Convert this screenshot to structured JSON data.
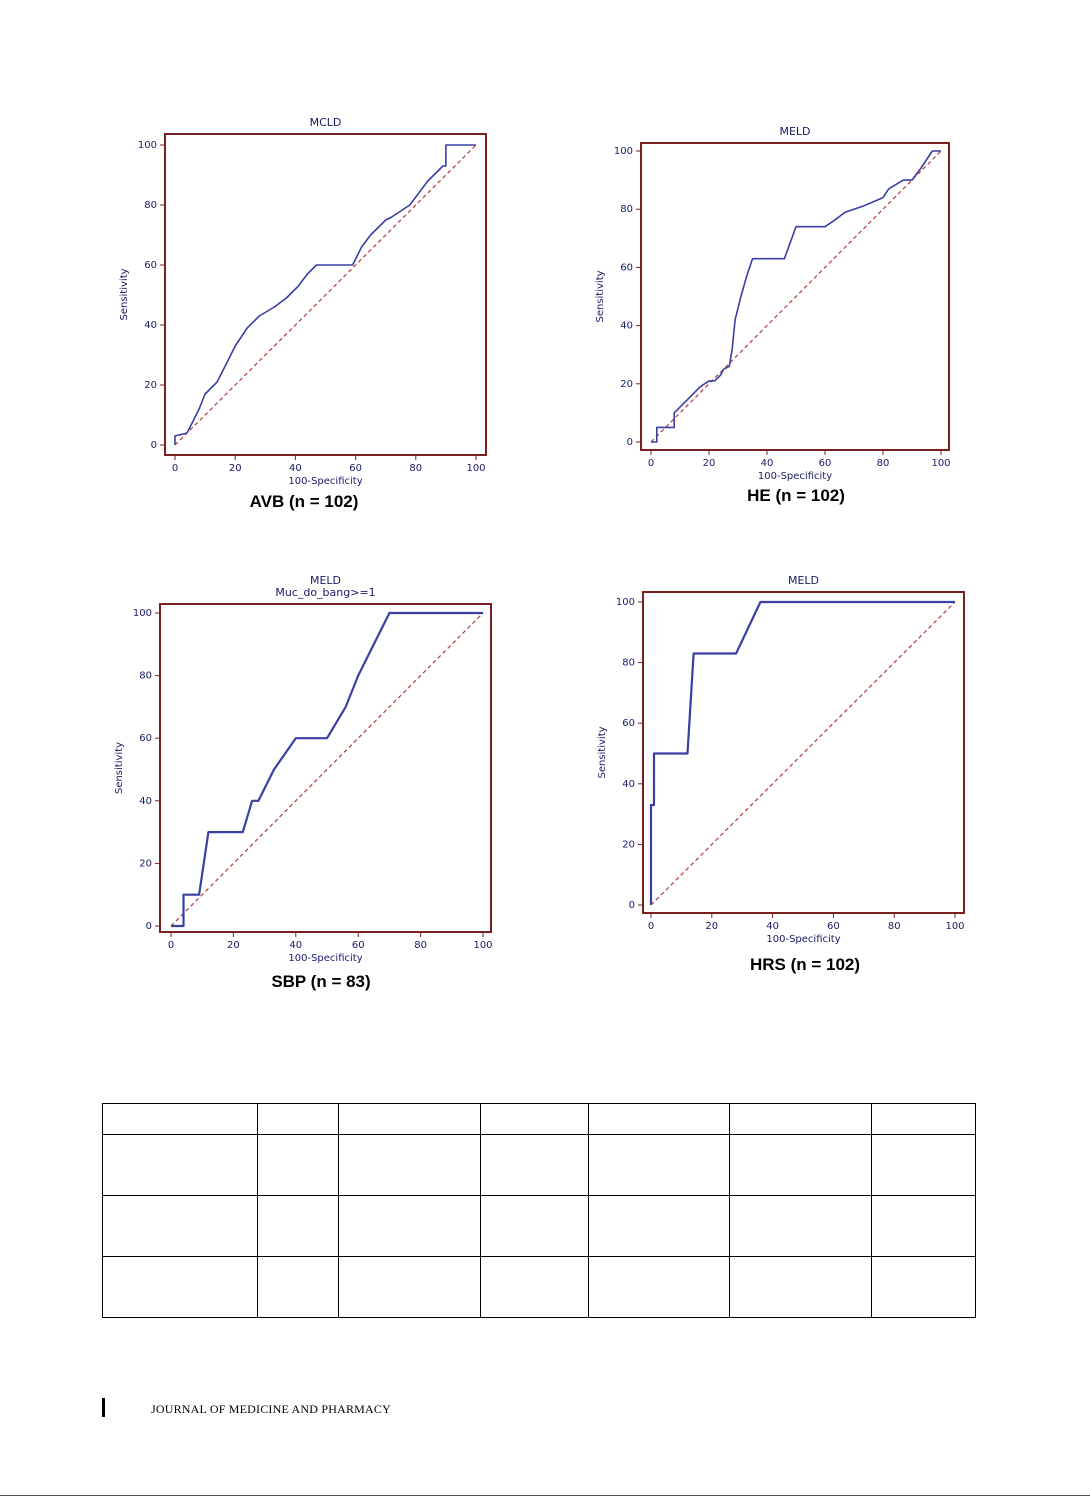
{
  "chart_data": [
    {
      "type": "line",
      "title": "MCLD",
      "subtitle": "",
      "xlabel": "100-Specificity",
      "ylabel": "Sensitivity",
      "xlim": [
        0,
        100
      ],
      "ylim": [
        0,
        100
      ],
      "xticks": [
        "0",
        "20",
        "40",
        "60",
        "80",
        "100"
      ],
      "yticks": [
        "0",
        "20",
        "40",
        "60",
        "80",
        "100"
      ],
      "caption": "AVB (n = 102)",
      "series": [
        {
          "x": [
            0,
            0,
            4,
            6,
            8,
            10,
            12,
            14,
            17,
            20,
            24,
            28,
            33,
            37,
            41,
            44,
            47,
            50,
            53,
            56,
            59,
            60,
            62,
            65,
            68,
            70,
            72,
            75,
            78,
            81,
            84,
            87,
            89,
            90,
            90,
            93,
            100
          ],
          "y": [
            0,
            3,
            4,
            8,
            12,
            17,
            19,
            21,
            27,
            33,
            39,
            43,
            46,
            49,
            53,
            57,
            60,
            60,
            60,
            60,
            60,
            62,
            66,
            70,
            73,
            75,
            76,
            78,
            80,
            84,
            88,
            91,
            93,
            93,
            100,
            100,
            100
          ]
        }
      ],
      "reference_line": true,
      "line_color": "#3a3fa4",
      "reference_color": "#b23a3a",
      "frame_color": "#7a1f1f",
      "legend": "none"
    },
    {
      "type": "line",
      "title": "MELD",
      "subtitle": "",
      "xlabel": "100-Specificity",
      "ylabel": "Sensitivity",
      "xlim": [
        0,
        100
      ],
      "ylim": [
        0,
        100
      ],
      "xticks": [
        "0",
        "20",
        "40",
        "60",
        "80",
        "100"
      ],
      "yticks": [
        "0",
        "20",
        "40",
        "60",
        "80",
        "100"
      ],
      "caption": "HE (n = 102)",
      "series": [
        {
          "x": [
            0,
            2,
            2,
            8,
            8,
            10,
            14,
            17,
            20,
            22,
            24,
            25,
            27,
            28,
            29,
            31,
            33,
            35,
            40,
            46,
            50,
            60,
            63,
            67,
            73,
            80,
            82,
            87,
            90,
            93,
            97,
            100
          ],
          "y": [
            0,
            0,
            5,
            5,
            10,
            12,
            16,
            19,
            21,
            21,
            23,
            25,
            26,
            32,
            42,
            50,
            57,
            63,
            63,
            63,
            74,
            74,
            76,
            79,
            81,
            84,
            87,
            90,
            90,
            94,
            100,
            100
          ]
        }
      ],
      "reference_line": true,
      "line_color": "#3a3fa4",
      "reference_color": "#b23a3a",
      "frame_color": "#7a1f1f",
      "legend": "none"
    },
    {
      "type": "line",
      "title": "MELD",
      "subtitle": "Muc_do_bang>=1",
      "xlabel": "100-Specificity",
      "ylabel": "Sensitivity",
      "xlim": [
        0,
        100
      ],
      "ylim": [
        0,
        100
      ],
      "xticks": [
        "0",
        "20",
        "40",
        "60",
        "80",
        "100"
      ],
      "yticks": [
        "0",
        "20",
        "40",
        "60",
        "80",
        "100"
      ],
      "caption": "SBP (n = 83)",
      "series": [
        {
          "x": [
            0,
            4,
            4,
            9,
            12,
            23,
            26,
            28,
            33,
            40,
            50,
            56,
            60,
            65,
            70,
            100
          ],
          "y": [
            0,
            0,
            10,
            10,
            30,
            30,
            40,
            40,
            50,
            60,
            60,
            70,
            80,
            90,
            100,
            100
          ]
        }
      ],
      "reference_line": true,
      "line_color": "#3a3fa4",
      "reference_color": "#b23a3a",
      "frame_color": "#7a1f1f",
      "legend": "none"
    },
    {
      "type": "line",
      "title": "MELD",
      "subtitle": "",
      "xlabel": "100-Specificity",
      "ylabel": "Sensitivity",
      "xlim": [
        0,
        100
      ],
      "ylim": [
        0,
        100
      ],
      "xticks": [
        "0",
        "20",
        "40",
        "60",
        "80",
        "100"
      ],
      "yticks": [
        "0",
        "20",
        "40",
        "60",
        "80",
        "100"
      ],
      "caption": "HRS (n = 102)",
      "series": [
        {
          "x": [
            0,
            0,
            1,
            1,
            12,
            14,
            28,
            36,
            100
          ],
          "y": [
            0,
            33,
            33,
            50,
            50,
            83,
            83,
            100,
            100
          ]
        }
      ],
      "reference_line": true,
      "line_color": "#3a3fa4",
      "reference_color": "#b23a3a",
      "frame_color": "#7a1f1f",
      "legend": "none"
    }
  ],
  "table": {
    "columns": 7,
    "rows": [
      [
        "",
        "",
        "",
        "",
        "",
        "",
        ""
      ],
      [
        "",
        "",
        "",
        "",
        "",
        "",
        ""
      ],
      [
        "",
        "",
        "",
        "",
        "",
        "",
        ""
      ],
      [
        "",
        "",
        "",
        "",
        "",
        "",
        ""
      ]
    ]
  },
  "footer": {
    "journal": "JOURNAL OF MEDICINE AND PHARMACY"
  }
}
